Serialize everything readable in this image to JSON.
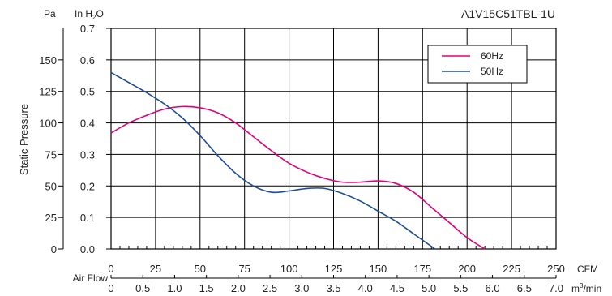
{
  "chart_data": {
    "type": "line",
    "title": "A1V15C51TBL-1U",
    "ylabel": "Static Pressure",
    "left_axis": {
      "unit": "Pa",
      "ticks": [
        0,
        25,
        50,
        75,
        100,
        125,
        150
      ],
      "ylim": [
        0,
        175
      ]
    },
    "right_axis": {
      "unit_main": "In H",
      "unit_sub": "2",
      "unit_tail": "O",
      "ticks": [
        "0.0",
        "0.1",
        "0.2",
        "0.3",
        "0.4",
        "0.5",
        "0.6",
        "0.7"
      ],
      "ylim": [
        0,
        0.7
      ]
    },
    "x_axis_cfm": {
      "unit": "CFM",
      "ticks": [
        0,
        25,
        50,
        75,
        100,
        125,
        150,
        175,
        200,
        225,
        250
      ],
      "xlim": [
        0,
        250
      ]
    },
    "x_axis_m3": {
      "label": "Air Flow",
      "unit_main": "m",
      "unit_sup": "3",
      "unit_tail": "/min",
      "ticks": [
        "0",
        "0.5",
        "1.0",
        "1.5",
        "2.0",
        "2.5",
        "3.0",
        "3.5",
        "4.0",
        "4.5",
        "5.0",
        "5.5",
        "6.0",
        "6.5",
        "7.0"
      ],
      "xlim": [
        0,
        7.0
      ]
    },
    "grid": true,
    "legend": {
      "position": "top-right"
    },
    "series": [
      {
        "name": "60Hz",
        "color": "#e0007a",
        "x": [
          0,
          10,
          20,
          30,
          40,
          50,
          60,
          70,
          80,
          90,
          100,
          110,
          120,
          130,
          140,
          150,
          160,
          170,
          180,
          190,
          200,
          210
        ],
        "y": [
          92,
          100,
          106,
          111,
          113,
          112,
          108,
          100,
          89,
          78,
          68,
          61,
          56,
          53,
          53,
          54,
          52,
          45,
          33,
          21,
          9,
          0
        ]
      },
      {
        "name": "50Hz",
        "color": "#1f4e96",
        "x": [
          0,
          10,
          20,
          30,
          40,
          50,
          60,
          70,
          80,
          90,
          100,
          110,
          120,
          130,
          140,
          150,
          160,
          170,
          180,
          182
        ],
        "y": [
          140,
          132,
          124,
          115,
          104,
          90,
          74,
          60,
          50,
          45,
          46,
          48,
          48,
          44,
          38,
          30,
          22,
          12,
          2,
          0
        ]
      }
    ]
  }
}
